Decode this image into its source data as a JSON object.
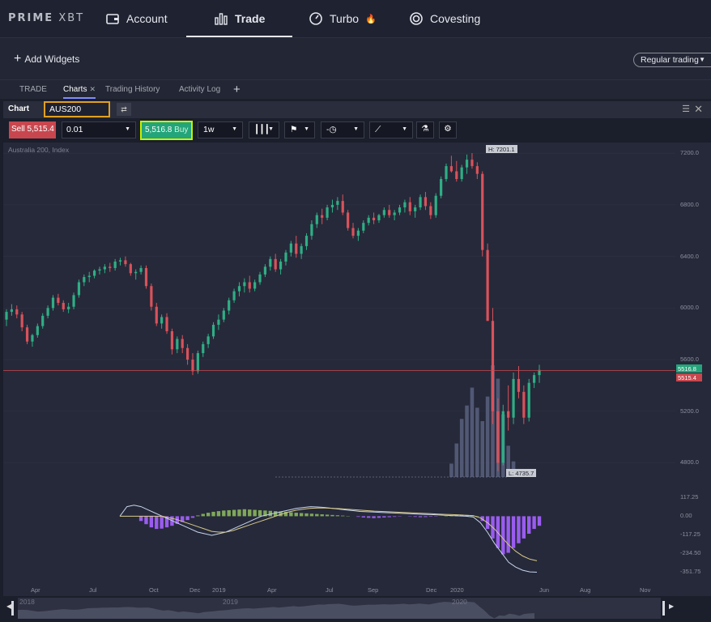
{
  "brand": {
    "logo_left": "PRIME",
    "logo_right": "XBT"
  },
  "nav": {
    "items": [
      {
        "label": "Account",
        "icon": "wallet-icon"
      },
      {
        "label": "Trade",
        "icon": "bar-chart-icon",
        "active": true
      },
      {
        "label": "Turbo",
        "icon": "speedometer-icon",
        "badge": "🔥"
      },
      {
        "label": "Covesting",
        "icon": "covesting-icon"
      }
    ]
  },
  "widgets": {
    "add_label": "Add Widgets",
    "trading_mode": "Regular trading"
  },
  "tabs": [
    {
      "label": "TRADE"
    },
    {
      "label": "Charts",
      "active": true,
      "closable": true
    },
    {
      "label": "Trading History"
    },
    {
      "label": "Activity Log"
    }
  ],
  "chart_panel": {
    "title": "Chart",
    "symbol": "AUS200",
    "instrument_name": "Australia 200, Index"
  },
  "toolbar": {
    "sell_label": "Sell",
    "sell_price": "5,515.4",
    "quantity": "0.01",
    "buy_price": "5,516.8",
    "buy_label": "Buy",
    "interval": "1w"
  },
  "colors": {
    "background": "#262939",
    "up_candle": "#2fae85",
    "down_candle": "#d9525b",
    "accent": "#7f8cff",
    "volume": "#59607f",
    "macd_hist_neg": "#9a5cf0",
    "macd_hist_pos": "#7fa85a",
    "macd_line": "#c6d4ee",
    "signal_line": "#d7c98a"
  },
  "chart_data": {
    "type": "candlestick",
    "y_ticks": [
      "7200.0",
      "6800.0",
      "6400.0",
      "6000.0",
      "5600.0",
      "5200.0",
      "4800.0"
    ],
    "ylim": [
      4740,
      7220
    ],
    "high_label": "H: 7201.1",
    "low_label": "L: 4735.7",
    "ask_tag": "5516.8",
    "bid_tag": "5515.4",
    "current_price": 5516,
    "x_ticks": [
      "Apr",
      "Jul",
      "Oct",
      "Dec",
      "2019",
      "Apr",
      "Jul",
      "Sep",
      "Dec",
      "2020",
      "Jun",
      "Aug",
      "Nov"
    ],
    "candles": [
      [
        5910,
        5990,
        5860,
        5970
      ],
      [
        5970,
        6030,
        5940,
        5990
      ],
      [
        5990,
        6020,
        5920,
        5950
      ],
      [
        5950,
        5970,
        5820,
        5850
      ],
      [
        5850,
        5870,
        5720,
        5740
      ],
      [
        5740,
        5800,
        5700,
        5790
      ],
      [
        5790,
        5880,
        5770,
        5860
      ],
      [
        5860,
        5960,
        5840,
        5940
      ],
      [
        5940,
        6020,
        5920,
        6000
      ],
      [
        6000,
        6100,
        5980,
        6080
      ],
      [
        6080,
        6110,
        6020,
        6040
      ],
      [
        6040,
        6060,
        5970,
        5990
      ],
      [
        5990,
        6040,
        5960,
        6010
      ],
      [
        6010,
        6120,
        5990,
        6100
      ],
      [
        6100,
        6220,
        6080,
        6200
      ],
      [
        6200,
        6260,
        6170,
        6240
      ],
      [
        6240,
        6280,
        6200,
        6250
      ],
      [
        6250,
        6300,
        6230,
        6290
      ],
      [
        6290,
        6320,
        6260,
        6300
      ],
      [
        6300,
        6340,
        6270,
        6320
      ],
      [
        6320,
        6350,
        6280,
        6310
      ],
      [
        6310,
        6380,
        6290,
        6360
      ],
      [
        6360,
        6390,
        6330,
        6370
      ],
      [
        6370,
        6400,
        6320,
        6340
      ],
      [
        6340,
        6350,
        6250,
        6270
      ],
      [
        6270,
        6300,
        6220,
        6280
      ],
      [
        6280,
        6330,
        6260,
        6310
      ],
      [
        6310,
        6330,
        6150,
        6170
      ],
      [
        6170,
        6190,
        5980,
        6010
      ],
      [
        6010,
        6040,
        5860,
        5880
      ],
      [
        5880,
        5950,
        5840,
        5930
      ],
      [
        5930,
        5960,
        5800,
        5820
      ],
      [
        5820,
        5840,
        5640,
        5680
      ],
      [
        5680,
        5780,
        5650,
        5760
      ],
      [
        5760,
        5790,
        5650,
        5690
      ],
      [
        5690,
        5720,
        5560,
        5600
      ],
      [
        5600,
        5650,
        5480,
        5510
      ],
      [
        5510,
        5670,
        5490,
        5650
      ],
      [
        5650,
        5740,
        5620,
        5720
      ],
      [
        5720,
        5800,
        5690,
        5780
      ],
      [
        5780,
        5890,
        5760,
        5870
      ],
      [
        5870,
        5950,
        5830,
        5910
      ],
      [
        5910,
        6000,
        5890,
        5980
      ],
      [
        5980,
        6080,
        5950,
        6060
      ],
      [
        6060,
        6150,
        6040,
        6130
      ],
      [
        6130,
        6200,
        6090,
        6170
      ],
      [
        6170,
        6230,
        6120,
        6200
      ],
      [
        6200,
        6250,
        6120,
        6150
      ],
      [
        6150,
        6220,
        6130,
        6200
      ],
      [
        6200,
        6280,
        6180,
        6260
      ],
      [
        6260,
        6340,
        6240,
        6320
      ],
      [
        6320,
        6400,
        6290,
        6380
      ],
      [
        6380,
        6420,
        6280,
        6300
      ],
      [
        6300,
        6380,
        6260,
        6360
      ],
      [
        6360,
        6450,
        6330,
        6430
      ],
      [
        6430,
        6520,
        6400,
        6500
      ],
      [
        6500,
        6560,
        6390,
        6420
      ],
      [
        6420,
        6500,
        6380,
        6480
      ],
      [
        6480,
        6580,
        6450,
        6560
      ],
      [
        6560,
        6680,
        6530,
        6650
      ],
      [
        6650,
        6740,
        6620,
        6720
      ],
      [
        6720,
        6770,
        6650,
        6700
      ],
      [
        6700,
        6800,
        6680,
        6780
      ],
      [
        6780,
        6840,
        6740,
        6800
      ],
      [
        6800,
        6860,
        6760,
        6830
      ],
      [
        6830,
        6880,
        6720,
        6740
      ],
      [
        6740,
        6760,
        6600,
        6620
      ],
      [
        6620,
        6660,
        6540,
        6560
      ],
      [
        6560,
        6620,
        6520,
        6600
      ],
      [
        6600,
        6680,
        6580,
        6660
      ],
      [
        6660,
        6720,
        6640,
        6700
      ],
      [
        6700,
        6740,
        6650,
        6680
      ],
      [
        6680,
        6730,
        6660,
        6720
      ],
      [
        6720,
        6780,
        6700,
        6760
      ],
      [
        6760,
        6800,
        6700,
        6720
      ],
      [
        6720,
        6760,
        6680,
        6740
      ],
      [
        6740,
        6800,
        6720,
        6780
      ],
      [
        6780,
        6840,
        6740,
        6820
      ],
      [
        6820,
        6860,
        6720,
        6750
      ],
      [
        6750,
        6800,
        6700,
        6780
      ],
      [
        6780,
        6880,
        6760,
        6860
      ],
      [
        6860,
        6900,
        6760,
        6790
      ],
      [
        6790,
        6820,
        6690,
        6720
      ],
      [
        6720,
        6890,
        6700,
        6870
      ],
      [
        6870,
        7020,
        6850,
        7000
      ],
      [
        7000,
        7120,
        6980,
        7100
      ],
      [
        7100,
        7180,
        7050,
        7060
      ],
      [
        7060,
        7140,
        6980,
        7000
      ],
      [
        7000,
        7110,
        6980,
        7090
      ],
      [
        7090,
        7190,
        7040,
        7150
      ],
      [
        7150,
        7201,
        7080,
        7100
      ],
      [
        7100,
        7130,
        7000,
        7040
      ],
      [
        7040,
        7060,
        6400,
        6450
      ],
      [
        6450,
        6500,
        5900,
        5900
      ],
      [
        5900,
        6000,
        5100,
        5200
      ],
      [
        5200,
        5300,
        4736,
        4800
      ],
      [
        4800,
        5250,
        4780,
        5200
      ],
      [
        5200,
        5400,
        5050,
        5150
      ],
      [
        5150,
        5500,
        5100,
        5450
      ],
      [
        5450,
        5550,
        5300,
        5350
      ],
      [
        5350,
        5400,
        5100,
        5150
      ],
      [
        5150,
        5450,
        5120,
        5420
      ],
      [
        5420,
        5500,
        5380,
        5480
      ],
      [
        5480,
        5560,
        5420,
        5520
      ]
    ],
    "volume": [
      0,
      0,
      0,
      0,
      0,
      0,
      0,
      0,
      0,
      0,
      0,
      0,
      0,
      0,
      0,
      0,
      0,
      0,
      0,
      0,
      0,
      0,
      0,
      0,
      0,
      0,
      0,
      0,
      0,
      0,
      0,
      0,
      0,
      0,
      0,
      0,
      0,
      0,
      0,
      0,
      0,
      0,
      0,
      0,
      0,
      0,
      0,
      0,
      0,
      0,
      0,
      0,
      0,
      0,
      0,
      0,
      0,
      0,
      0,
      0,
      0,
      0,
      0,
      0,
      0,
      0,
      0,
      0,
      0,
      0,
      0,
      0,
      0,
      0,
      0,
      0,
      0,
      0,
      0,
      0,
      0,
      0,
      0,
      0,
      0,
      0,
      12,
      30,
      52,
      64,
      80,
      62,
      50,
      72,
      100,
      88,
      56,
      28,
      14,
      0,
      0,
      0,
      0,
      0
    ],
    "macd": {
      "y_ticks": [
        "117.25",
        "0.00",
        "-117.25",
        "-234.50",
        "-351.75"
      ],
      "ylim": [
        -380,
        160
      ],
      "hist": [
        0,
        0,
        0,
        0,
        0,
        0,
        0,
        0,
        0,
        0,
        0,
        0,
        0,
        0,
        0,
        0,
        0,
        0,
        0,
        0,
        0,
        0,
        0,
        0,
        0,
        0,
        -30,
        -50,
        -70,
        -80,
        -78,
        -70,
        -60,
        -48,
        -36,
        -24,
        -10,
        5,
        15,
        22,
        28,
        32,
        36,
        38,
        40,
        42,
        44,
        42,
        40,
        38,
        36,
        34,
        32,
        30,
        28,
        25,
        22,
        20,
        18,
        16,
        14,
        12,
        10,
        8,
        6,
        4,
        2,
        0,
        -4,
        -8,
        -10,
        -12,
        -10,
        -8,
        -6,
        -4,
        -2,
        0,
        -2,
        -4,
        -6,
        -5,
        -3,
        -2,
        0,
        2,
        5,
        8,
        10,
        8,
        5,
        2,
        -30,
        -80,
        -140,
        -200,
        -240,
        -230,
        -200,
        -170,
        -140,
        -110,
        -80,
        -60
      ],
      "line": [
        0,
        60,
        70,
        60,
        40,
        20,
        0,
        -20,
        -40,
        -60,
        -80,
        -100,
        -110,
        -120,
        -110,
        -100,
        -80,
        -60,
        -40,
        -20,
        0,
        10,
        20,
        30,
        40,
        50,
        55,
        60,
        58,
        55,
        50,
        45,
        40,
        35,
        30,
        28,
        26,
        24,
        22,
        20,
        18,
        16,
        14,
        12,
        10,
        8,
        6,
        4,
        2,
        0,
        -5,
        -40,
        -100,
        -170,
        -230,
        -290,
        -320,
        -340,
        -350,
        -352
      ],
      "signal": [
        0,
        0,
        0,
        0,
        0,
        0,
        0,
        -10,
        -20,
        -35,
        -50,
        -65,
        -80,
        -95,
        -100,
        -100,
        -90,
        -75,
        -60,
        -45,
        -30,
        -15,
        0,
        15,
        28,
        38,
        45,
        50,
        52,
        52,
        50,
        48,
        45,
        42,
        38,
        35,
        32,
        30,
        28,
        26,
        24,
        22,
        20,
        18,
        16,
        14,
        12,
        10,
        8,
        6,
        4,
        -10,
        -40,
        -80,
        -130,
        -180,
        -220,
        -250,
        -270,
        -280
      ]
    }
  },
  "navigator": {
    "labels": [
      "2018",
      "2019",
      "2020"
    ]
  }
}
